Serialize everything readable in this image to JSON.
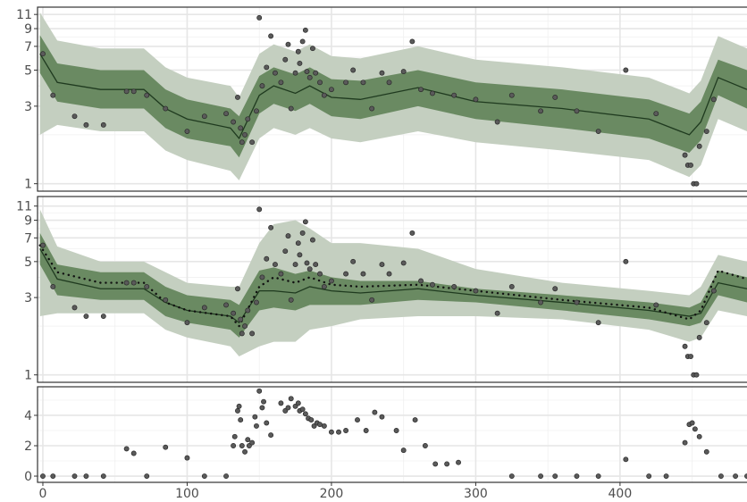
{
  "chart_data": [
    {
      "type": "band",
      "yscale": "log",
      "xlim": [
        -3.7,
        488
      ],
      "ylim": [
        0.9,
        12.2
      ],
      "yticks": [
        1,
        3,
        5,
        7,
        9,
        11
      ],
      "y_minor_grid": [
        2,
        4,
        6,
        8,
        10
      ],
      "xgrid": [
        0,
        100,
        200,
        300,
        400
      ],
      "x_minor_grid": [
        50,
        150,
        250,
        350,
        450
      ],
      "x": [
        -2,
        10,
        40,
        70,
        85,
        100,
        130,
        136,
        150,
        160,
        175,
        185,
        200,
        220,
        260,
        300,
        360,
        420,
        448,
        456,
        468,
        488
      ],
      "bands": [
        {
          "color": "#c4cfc0",
          "lower": [
            2.0,
            2.3,
            2.1,
            2.1,
            1.6,
            1.4,
            1.2,
            1.05,
            1.9,
            2.2,
            2.0,
            2.2,
            1.9,
            1.8,
            2.1,
            1.8,
            1.6,
            1.4,
            1.1,
            1.3,
            2.5,
            2.1
          ],
          "upper": [
            11.3,
            7.6,
            6.8,
            6.8,
            5.2,
            4.5,
            4.0,
            3.4,
            6.3,
            7.2,
            6.5,
            7.2,
            6.1,
            5.9,
            7.0,
            5.8,
            5.2,
            4.5,
            3.6,
            4.3,
            8.1,
            6.8
          ]
        },
        {
          "color": "#6a8a62",
          "lower": [
            4.8,
            3.2,
            2.9,
            2.9,
            2.2,
            1.9,
            1.7,
            1.45,
            2.7,
            3.1,
            2.8,
            3.1,
            2.6,
            2.5,
            3.0,
            2.5,
            2.2,
            1.9,
            1.55,
            1.85,
            3.5,
            2.9
          ],
          "upper": [
            8.2,
            5.5,
            5.0,
            5.0,
            3.8,
            3.3,
            2.9,
            2.6,
            4.6,
            5.2,
            4.7,
            5.2,
            4.4,
            4.3,
            5.0,
            4.2,
            3.8,
            3.3,
            2.7,
            3.2,
            5.8,
            5.0
          ]
        }
      ],
      "series": [
        {
          "color": "#1f3a1f",
          "linestyle": "solid",
          "values": [
            6.3,
            4.2,
            3.8,
            3.8,
            2.9,
            2.5,
            2.2,
            1.9,
            3.5,
            4.0,
            3.6,
            4.0,
            3.4,
            3.3,
            3.9,
            3.2,
            2.9,
            2.5,
            2.0,
            2.4,
            4.5,
            3.8
          ]
        }
      ],
      "points": {
        "color": "#5a5a5a",
        "x": [
          0,
          7,
          22,
          30,
          42,
          58,
          63,
          72,
          85,
          100,
          112,
          127,
          132,
          135,
          137,
          138,
          140,
          142,
          145,
          148,
          150,
          152,
          155,
          158,
          161,
          165,
          168,
          170,
          172,
          175,
          177,
          178,
          180,
          182,
          183,
          185,
          187,
          189,
          192,
          195,
          200,
          210,
          215,
          222,
          228,
          235,
          240,
          250,
          256,
          262,
          270,
          285,
          300,
          315,
          325,
          345,
          355,
          370,
          385,
          404,
          425,
          445,
          447,
          449,
          451,
          453,
          455,
          460,
          465
        ],
        "y": [
          6.3,
          3.5,
          2.6,
          2.3,
          2.3,
          3.7,
          3.7,
          3.5,
          2.9,
          2.1,
          2.6,
          2.7,
          2.4,
          3.4,
          2.2,
          1.8,
          2.0,
          2.5,
          1.8,
          2.8,
          10.5,
          4.0,
          5.2,
          8.1,
          4.8,
          4.2,
          5.8,
          7.2,
          2.9,
          4.8,
          6.5,
          5.5,
          7.5,
          8.8,
          4.9,
          4.5,
          6.8,
          4.8,
          4.2,
          3.5,
          3.8,
          4.2,
          5.0,
          4.2,
          2.9,
          4.8,
          4.2,
          4.9,
          7.5,
          3.8,
          3.6,
          3.5,
          3.3,
          2.4,
          3.5,
          2.8,
          3.4,
          2.8,
          2.1,
          5.0,
          2.7,
          1.5,
          1.3,
          1.3,
          1.0,
          1.0,
          1.7,
          2.1,
          3.3
        ]
      }
    },
    {
      "type": "band",
      "yscale": "log",
      "xlim": [
        -3.7,
        488
      ],
      "ylim": [
        0.9,
        12.6
      ],
      "yticks": [
        1,
        3,
        5,
        7,
        9,
        11
      ],
      "y_minor_grid": [
        2,
        4,
        6,
        8,
        10
      ],
      "xgrid": [
        0,
        100,
        200,
        300,
        400
      ],
      "x_minor_grid": [
        50,
        150,
        250,
        350,
        450
      ],
      "x": [
        -2,
        10,
        40,
        70,
        85,
        100,
        130,
        136,
        150,
        160,
        175,
        185,
        200,
        220,
        260,
        300,
        360,
        420,
        448,
        456,
        468,
        488
      ],
      "bands": [
        {
          "color": "#c4cfc0",
          "lower": [
            2.3,
            2.4,
            2.4,
            2.4,
            1.9,
            1.7,
            1.5,
            1.3,
            1.5,
            1.6,
            1.6,
            1.9,
            2.0,
            2.2,
            2.3,
            2.3,
            2.2,
            1.9,
            1.6,
            1.7,
            2.5,
            2.3
          ],
          "upper": [
            10.5,
            6.2,
            5.0,
            5.0,
            4.3,
            3.7,
            3.5,
            3.5,
            6.5,
            8.5,
            9.0,
            8.0,
            6.5,
            6.5,
            6.0,
            4.5,
            3.7,
            3.3,
            3.1,
            3.5,
            5.5,
            5.0
          ]
        },
        {
          "color": "#6a8a62",
          "lower": [
            4.8,
            3.1,
            2.9,
            2.9,
            2.3,
            2.1,
            1.9,
            1.7,
            2.5,
            2.6,
            2.5,
            2.7,
            2.7,
            2.7,
            2.9,
            2.8,
            2.5,
            2.2,
            2.0,
            2.1,
            3.1,
            2.8
          ],
          "upper": [
            7.5,
            4.8,
            4.3,
            4.3,
            3.5,
            3.1,
            2.9,
            2.7,
            4.4,
            4.6,
            4.2,
            4.4,
            4.0,
            3.8,
            3.8,
            3.4,
            3.1,
            2.8,
            2.6,
            2.8,
            4.4,
            4.0
          ]
        }
      ],
      "series": [
        {
          "color": "#1f3a1f",
          "linestyle": "solid",
          "values": [
            6.0,
            3.9,
            3.4,
            3.4,
            2.8,
            2.5,
            2.3,
            2.1,
            3.3,
            3.3,
            3.2,
            3.5,
            3.3,
            3.2,
            3.4,
            3.1,
            2.8,
            2.5,
            2.3,
            2.4,
            3.7,
            3.4
          ]
        },
        {
          "color": "#111111",
          "linestyle": "dotted",
          "values": [
            6.3,
            4.3,
            3.7,
            3.7,
            2.8,
            2.5,
            2.3,
            2.0,
            3.5,
            4.0,
            3.7,
            4.0,
            3.6,
            3.5,
            3.6,
            3.3,
            2.9,
            2.6,
            2.2,
            2.5,
            4.4,
            3.9
          ]
        }
      ],
      "points": {
        "color": "#5a5a5a",
        "x": [
          0,
          7,
          22,
          30,
          42,
          58,
          63,
          72,
          85,
          100,
          112,
          127,
          132,
          135,
          137,
          138,
          140,
          142,
          145,
          148,
          150,
          152,
          155,
          158,
          161,
          165,
          168,
          170,
          172,
          175,
          177,
          178,
          180,
          182,
          183,
          185,
          187,
          189,
          192,
          195,
          200,
          210,
          215,
          222,
          228,
          235,
          240,
          250,
          256,
          262,
          270,
          285,
          300,
          315,
          325,
          345,
          355,
          370,
          385,
          404,
          425,
          445,
          447,
          449,
          451,
          453,
          455,
          460,
          465
        ],
        "y": [
          6.3,
          3.5,
          2.6,
          2.3,
          2.3,
          3.7,
          3.7,
          3.5,
          2.9,
          2.1,
          2.6,
          2.7,
          2.4,
          3.4,
          2.2,
          1.8,
          2.0,
          2.5,
          1.8,
          2.8,
          10.5,
          4.0,
          5.2,
          8.1,
          4.8,
          4.2,
          5.8,
          7.2,
          2.9,
          4.8,
          6.5,
          5.5,
          7.5,
          8.8,
          4.9,
          4.5,
          6.8,
          4.8,
          4.2,
          3.5,
          3.8,
          4.2,
          5.0,
          4.2,
          2.9,
          4.8,
          4.2,
          4.9,
          7.5,
          3.8,
          3.6,
          3.5,
          3.3,
          2.4,
          3.5,
          2.8,
          3.4,
          2.8,
          2.1,
          5.0,
          2.7,
          1.5,
          1.3,
          1.3,
          1.0,
          1.0,
          1.7,
          2.1,
          3.3
        ]
      }
    },
    {
      "type": "scatter",
      "yscale": "linear",
      "xlim": [
        -3.7,
        488
      ],
      "ylim": [
        -0.41,
        5.88
      ],
      "yticks": [
        0,
        2,
        4
      ],
      "y_minor_grid": [
        1,
        3,
        5
      ],
      "xticks": [
        0,
        100,
        200,
        300,
        400
      ],
      "x_minor_grid": [
        50,
        150,
        250,
        350,
        450
      ],
      "points": {
        "color": "#5a5a5a",
        "x": [
          0,
          7,
          22,
          30,
          42,
          58,
          63,
          72,
          85,
          100,
          112,
          127,
          132,
          133,
          135,
          136,
          137,
          138,
          140,
          142,
          143,
          145,
          147,
          148,
          150,
          152,
          153,
          155,
          158,
          165,
          168,
          170,
          172,
          175,
          177,
          178,
          180,
          182,
          184,
          186,
          188,
          190,
          192,
          195,
          200,
          205,
          210,
          218,
          224,
          230,
          235,
          245,
          250,
          258,
          265,
          272,
          280,
          288,
          325,
          345,
          355,
          370,
          385,
          404,
          420,
          432,
          445,
          448,
          450,
          452,
          455,
          460,
          470,
          480,
          488
        ],
        "y": [
          0,
          0,
          0,
          0,
          0,
          1.8,
          1.5,
          0,
          1.9,
          1.2,
          0,
          0,
          2.0,
          2.6,
          4.3,
          4.6,
          3.7,
          2.0,
          1.6,
          2.4,
          2.0,
          2.2,
          3.9,
          3.3,
          5.6,
          4.5,
          4.9,
          3.5,
          2.7,
          4.8,
          4.3,
          4.5,
          5.1,
          4.6,
          4.8,
          4.3,
          4.4,
          4.1,
          3.8,
          3.7,
          3.3,
          3.5,
          3.4,
          3.3,
          2.9,
          2.9,
          3.0,
          3.7,
          3.0,
          4.2,
          3.9,
          3.0,
          1.7,
          3.7,
          2.0,
          0.8,
          0.8,
          0.9,
          0,
          0,
          0,
          0,
          0,
          1.1,
          0,
          0,
          2.2,
          3.4,
          3.5,
          3.1,
          2.6,
          1.6,
          0,
          0,
          0
        ]
      }
    }
  ]
}
